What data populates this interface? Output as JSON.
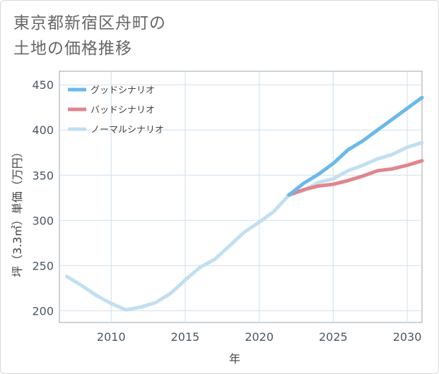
{
  "title_lines": [
    "東京都新宿区舟町の",
    "土地の価格推移"
  ],
  "chart_data": {
    "type": "line",
    "xlabel": "年",
    "ylabel": "坪（3.3㎡）単価（万円）",
    "xlim": [
      2006.5,
      2031
    ],
    "ylim": [
      187,
      465
    ],
    "xticks": [
      2010,
      2015,
      2020,
      2025,
      2030
    ],
    "yticks": [
      200,
      250,
      300,
      350,
      400,
      450
    ],
    "legend_position": "top-left",
    "series": [
      {
        "name": "グッドシナリオ",
        "color": "#6ab9ea",
        "x": [
          2022,
          2023,
          2024,
          2025,
          2026,
          2027,
          2028,
          2029,
          2030,
          2031
        ],
        "y": [
          328,
          341,
          351,
          363,
          378,
          388,
          400,
          412,
          424,
          436
        ]
      },
      {
        "name": "バッドシナリオ",
        "color": "#e0858e",
        "x": [
          2022,
          2023,
          2024,
          2025,
          2026,
          2027,
          2028,
          2029,
          2030,
          2031
        ],
        "y": [
          328,
          334,
          338,
          340,
          344,
          349,
          355,
          357,
          361,
          366
        ]
      },
      {
        "name": "ノーマルシナリオ",
        "color": "#c2dff0",
        "x": [
          2007,
          2008,
          2009,
          2010,
          2011,
          2012,
          2013,
          2014,
          2015,
          2016,
          2017,
          2018,
          2019,
          2020,
          2021,
          2022,
          2023,
          2024,
          2025,
          2026,
          2027,
          2028,
          2029,
          2030,
          2031
        ],
        "y": [
          238,
          228,
          217,
          208,
          201,
          204,
          209,
          219,
          234,
          248,
          257,
          272,
          287,
          298,
          310,
          328,
          333,
          342,
          346,
          355,
          361,
          368,
          373,
          381,
          386
        ]
      }
    ]
  }
}
